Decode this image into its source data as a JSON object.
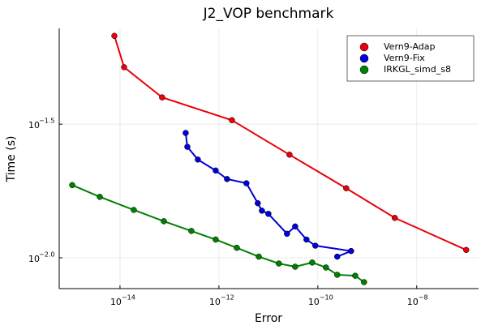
{
  "chart_data": {
    "type": "line",
    "title": "J2_VOP benchmark",
    "x_label": "Error",
    "y_label": "Time (s)",
    "log_x": true,
    "log_y": true,
    "grid": true,
    "legend": "top-right",
    "xlim": [
      5.9e-16,
      1.78e-07
    ],
    "ylim": [
      0.00767,
      0.0721
    ],
    "xticks": [
      {
        "value": 1e-14,
        "label": "10",
        "exponent": "−14"
      },
      {
        "value": 1e-12,
        "label": "10",
        "exponent": "−12"
      },
      {
        "value": 1e-10,
        "label": "10",
        "exponent": "−10"
      },
      {
        "value": 1e-08,
        "label": "10",
        "exponent": "−8"
      }
    ],
    "yticks": [
      {
        "value": 0.0316,
        "label": "10",
        "exponent": "−1.5"
      },
      {
        "value": 0.01,
        "label": "10",
        "exponent": "−2.0"
      }
    ],
    "series": [
      {
        "name": "Vern9-Adap",
        "color": "#e8000b",
        "x": [
          7.7e-15,
          1.21e-14,
          7.1e-14,
          1.83e-12,
          2.67e-11,
          3.75e-10,
          3.6e-09,
          1e-07
        ],
        "values": [
          0.0676,
          0.0516,
          0.0398,
          0.0327,
          0.0243,
          0.0182,
          0.0141,
          0.0107
        ]
      },
      {
        "name": "Vern9-Fix",
        "color": "#0000d8",
        "x": [
          2.13e-13,
          2.3e-13,
          3.75e-13,
          8.6e-13,
          1.46e-12,
          3.6e-12,
          6.1e-12,
          7.4e-12,
          1e-11,
          2.38e-11,
          3.48e-11,
          5.9e-11,
          8.9e-11,
          4.7e-10,
          2.47e-10
        ],
        "values": [
          0.0293,
          0.026,
          0.0233,
          0.0212,
          0.0197,
          0.019,
          0.016,
          0.015,
          0.0146,
          0.0123,
          0.0131,
          0.0117,
          0.0111,
          0.0106,
          0.0101
        ]
      },
      {
        "name": "IRKGL_simd_s8",
        "color": "#008000",
        "x": [
          1.08e-15,
          3.9e-15,
          1.9e-14,
          7.7e-14,
          2.77e-13,
          8.6e-13,
          2.3e-12,
          6.4e-12,
          1.63e-11,
          3.48e-11,
          7.7e-11,
          1.46e-10,
          2.47e-10,
          5.7e-10,
          8.6e-10
        ],
        "values": [
          0.0187,
          0.0169,
          0.0151,
          0.0137,
          0.0126,
          0.0117,
          0.0109,
          0.0101,
          0.00952,
          0.00926,
          0.0096,
          0.0092,
          0.00864,
          0.00857,
          0.00811
        ]
      }
    ]
  }
}
